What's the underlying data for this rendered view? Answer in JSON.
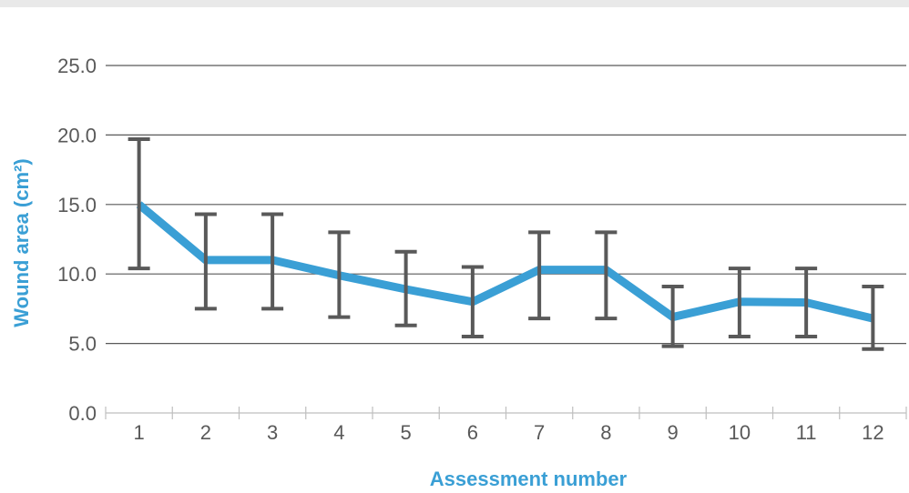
{
  "chart_data": {
    "type": "line",
    "title": "",
    "xlabel": "Assessment number",
    "ylabel": "Wound area (cm²)",
    "categories": [
      "1",
      "2",
      "3",
      "4",
      "5",
      "6",
      "7",
      "8",
      "9",
      "10",
      "11",
      "12"
    ],
    "series": [
      {
        "values": [
          15.0,
          11.0,
          11.0,
          9.9,
          8.9,
          8.0,
          10.3,
          10.3,
          6.9,
          8.0,
          7.95,
          6.8
        ],
        "error_low": [
          10.4,
          7.5,
          7.5,
          6.9,
          6.3,
          5.5,
          6.8,
          6.8,
          4.8,
          5.5,
          5.5,
          4.6
        ],
        "error_high": [
          19.7,
          14.3,
          14.3,
          13.0,
          11.6,
          10.5,
          13.0,
          13.0,
          9.1,
          10.4,
          10.4,
          9.1
        ]
      }
    ],
    "ylim": [
      0,
      25
    ],
    "yticks": [
      "0.0",
      "5.0",
      "10.0",
      "15.0",
      "20.0",
      "25.0"
    ],
    "ytick_values": [
      0,
      5,
      10,
      15,
      20,
      25
    ],
    "grid": "horizontal",
    "legend": "none",
    "colors": {
      "line": "#3a9fd5",
      "error_bar": "#595959",
      "grid": "#595959",
      "tick_text": "#595959",
      "axis_title": "#3a9fd5"
    }
  }
}
